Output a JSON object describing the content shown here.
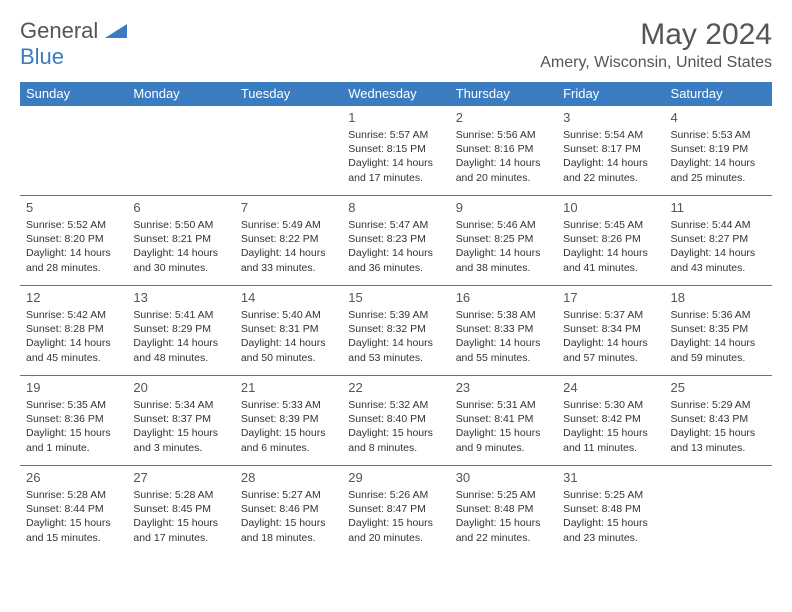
{
  "logo": {
    "word1": "General",
    "word2": "Blue"
  },
  "title": "May 2024",
  "location": "Amery, Wisconsin, United States",
  "colors": {
    "header_bg": "#3b7cc0",
    "header_fg": "#ffffff",
    "text": "#333333",
    "muted": "#555555",
    "border": "#3b7cc0",
    "background": "#ffffff"
  },
  "day_headers": [
    "Sunday",
    "Monday",
    "Tuesday",
    "Wednesday",
    "Thursday",
    "Friday",
    "Saturday"
  ],
  "weeks": [
    [
      {},
      {},
      {},
      {
        "day": "1",
        "sunrise": "Sunrise: 5:57 AM",
        "sunset": "Sunset: 8:15 PM",
        "daylight": "Daylight: 14 hours and 17 minutes."
      },
      {
        "day": "2",
        "sunrise": "Sunrise: 5:56 AM",
        "sunset": "Sunset: 8:16 PM",
        "daylight": "Daylight: 14 hours and 20 minutes."
      },
      {
        "day": "3",
        "sunrise": "Sunrise: 5:54 AM",
        "sunset": "Sunset: 8:17 PM",
        "daylight": "Daylight: 14 hours and 22 minutes."
      },
      {
        "day": "4",
        "sunrise": "Sunrise: 5:53 AM",
        "sunset": "Sunset: 8:19 PM",
        "daylight": "Daylight: 14 hours and 25 minutes."
      }
    ],
    [
      {
        "day": "5",
        "sunrise": "Sunrise: 5:52 AM",
        "sunset": "Sunset: 8:20 PM",
        "daylight": "Daylight: 14 hours and 28 minutes."
      },
      {
        "day": "6",
        "sunrise": "Sunrise: 5:50 AM",
        "sunset": "Sunset: 8:21 PM",
        "daylight": "Daylight: 14 hours and 30 minutes."
      },
      {
        "day": "7",
        "sunrise": "Sunrise: 5:49 AM",
        "sunset": "Sunset: 8:22 PM",
        "daylight": "Daylight: 14 hours and 33 minutes."
      },
      {
        "day": "8",
        "sunrise": "Sunrise: 5:47 AM",
        "sunset": "Sunset: 8:23 PM",
        "daylight": "Daylight: 14 hours and 36 minutes."
      },
      {
        "day": "9",
        "sunrise": "Sunrise: 5:46 AM",
        "sunset": "Sunset: 8:25 PM",
        "daylight": "Daylight: 14 hours and 38 minutes."
      },
      {
        "day": "10",
        "sunrise": "Sunrise: 5:45 AM",
        "sunset": "Sunset: 8:26 PM",
        "daylight": "Daylight: 14 hours and 41 minutes."
      },
      {
        "day": "11",
        "sunrise": "Sunrise: 5:44 AM",
        "sunset": "Sunset: 8:27 PM",
        "daylight": "Daylight: 14 hours and 43 minutes."
      }
    ],
    [
      {
        "day": "12",
        "sunrise": "Sunrise: 5:42 AM",
        "sunset": "Sunset: 8:28 PM",
        "daylight": "Daylight: 14 hours and 45 minutes."
      },
      {
        "day": "13",
        "sunrise": "Sunrise: 5:41 AM",
        "sunset": "Sunset: 8:29 PM",
        "daylight": "Daylight: 14 hours and 48 minutes."
      },
      {
        "day": "14",
        "sunrise": "Sunrise: 5:40 AM",
        "sunset": "Sunset: 8:31 PM",
        "daylight": "Daylight: 14 hours and 50 minutes."
      },
      {
        "day": "15",
        "sunrise": "Sunrise: 5:39 AM",
        "sunset": "Sunset: 8:32 PM",
        "daylight": "Daylight: 14 hours and 53 minutes."
      },
      {
        "day": "16",
        "sunrise": "Sunrise: 5:38 AM",
        "sunset": "Sunset: 8:33 PM",
        "daylight": "Daylight: 14 hours and 55 minutes."
      },
      {
        "day": "17",
        "sunrise": "Sunrise: 5:37 AM",
        "sunset": "Sunset: 8:34 PM",
        "daylight": "Daylight: 14 hours and 57 minutes."
      },
      {
        "day": "18",
        "sunrise": "Sunrise: 5:36 AM",
        "sunset": "Sunset: 8:35 PM",
        "daylight": "Daylight: 14 hours and 59 minutes."
      }
    ],
    [
      {
        "day": "19",
        "sunrise": "Sunrise: 5:35 AM",
        "sunset": "Sunset: 8:36 PM",
        "daylight": "Daylight: 15 hours and 1 minute."
      },
      {
        "day": "20",
        "sunrise": "Sunrise: 5:34 AM",
        "sunset": "Sunset: 8:37 PM",
        "daylight": "Daylight: 15 hours and 3 minutes."
      },
      {
        "day": "21",
        "sunrise": "Sunrise: 5:33 AM",
        "sunset": "Sunset: 8:39 PM",
        "daylight": "Daylight: 15 hours and 6 minutes."
      },
      {
        "day": "22",
        "sunrise": "Sunrise: 5:32 AM",
        "sunset": "Sunset: 8:40 PM",
        "daylight": "Daylight: 15 hours and 8 minutes."
      },
      {
        "day": "23",
        "sunrise": "Sunrise: 5:31 AM",
        "sunset": "Sunset: 8:41 PM",
        "daylight": "Daylight: 15 hours and 9 minutes."
      },
      {
        "day": "24",
        "sunrise": "Sunrise: 5:30 AM",
        "sunset": "Sunset: 8:42 PM",
        "daylight": "Daylight: 15 hours and 11 minutes."
      },
      {
        "day": "25",
        "sunrise": "Sunrise: 5:29 AM",
        "sunset": "Sunset: 8:43 PM",
        "daylight": "Daylight: 15 hours and 13 minutes."
      }
    ],
    [
      {
        "day": "26",
        "sunrise": "Sunrise: 5:28 AM",
        "sunset": "Sunset: 8:44 PM",
        "daylight": "Daylight: 15 hours and 15 minutes."
      },
      {
        "day": "27",
        "sunrise": "Sunrise: 5:28 AM",
        "sunset": "Sunset: 8:45 PM",
        "daylight": "Daylight: 15 hours and 17 minutes."
      },
      {
        "day": "28",
        "sunrise": "Sunrise: 5:27 AM",
        "sunset": "Sunset: 8:46 PM",
        "daylight": "Daylight: 15 hours and 18 minutes."
      },
      {
        "day": "29",
        "sunrise": "Sunrise: 5:26 AM",
        "sunset": "Sunset: 8:47 PM",
        "daylight": "Daylight: 15 hours and 20 minutes."
      },
      {
        "day": "30",
        "sunrise": "Sunrise: 5:25 AM",
        "sunset": "Sunset: 8:48 PM",
        "daylight": "Daylight: 15 hours and 22 minutes."
      },
      {
        "day": "31",
        "sunrise": "Sunrise: 5:25 AM",
        "sunset": "Sunset: 8:48 PM",
        "daylight": "Daylight: 15 hours and 23 minutes."
      },
      {}
    ]
  ]
}
